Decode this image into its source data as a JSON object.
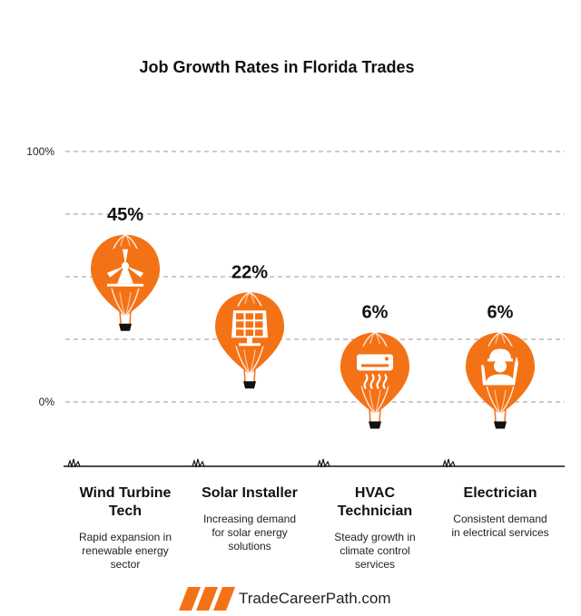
{
  "chart_data": {
    "type": "bar",
    "title": "Job Growth Rates in Florida Trades",
    "categories": [
      "Wind Turbine Tech",
      "Solar Installer",
      "HVAC Technician",
      "Electrician"
    ],
    "values": [
      45,
      22,
      6,
      6
    ],
    "value_labels": [
      "45%",
      "22%",
      "6%",
      "6%"
    ],
    "ylim": [
      0,
      100
    ],
    "y_ticks": [
      {
        "value": 100,
        "label": "100%"
      },
      {
        "value": 0,
        "label": "0%"
      }
    ],
    "y_gridlines": [
      100,
      75,
      50,
      25,
      0
    ],
    "grid": true,
    "descriptions": [
      "Rapid expansion in renewable energy sector",
      "Increasing demand for solar energy solutions",
      "Steady growth in climate control services",
      "Consistent demand in electrical services"
    ],
    "icons": [
      "wind-turbine-icon",
      "solar-panel-icon",
      "air-conditioner-icon",
      "electrician-icon"
    ],
    "marker": "hot-air-balloon",
    "accent_color": "#f47216"
  },
  "categories_display": {
    "names": [
      [
        "Wind Turbine",
        "Tech"
      ],
      [
        "Solar Installer"
      ],
      [
        "HVAC",
        "Technician"
      ],
      [
        "Electrician"
      ]
    ],
    "descriptions": [
      [
        "Rapid expansion in",
        "renewable energy",
        "sector"
      ],
      [
        "Increasing demand",
        "for solar energy",
        "solutions"
      ],
      [
        "Steady growth in",
        "climate control",
        "services"
      ],
      [
        "Consistent demand",
        "in electrical services"
      ]
    ]
  },
  "footer": {
    "brand": "TradeCareerPath.com"
  }
}
